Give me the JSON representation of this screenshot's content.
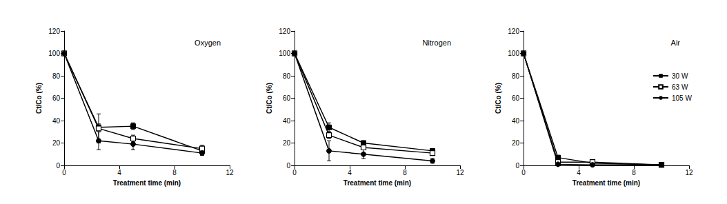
{
  "chart_data": [
    {
      "type": "line",
      "title": "Oxygen",
      "x_label": "Treatment time (min)",
      "y_label": "Ct/Co (%)",
      "x": [
        0,
        2.5,
        5,
        10
      ],
      "xlim": [
        0,
        12
      ],
      "xticks": [
        0,
        4,
        8,
        12
      ],
      "ylim": [
        0,
        120
      ],
      "yticks": [
        0,
        20,
        40,
        60,
        80,
        100,
        120
      ],
      "grid": false,
      "series": [
        {
          "name": "30 W",
          "color": "#000000",
          "marker": "square",
          "values": [
            100,
            34,
            35,
            13
          ],
          "errors": [
            0,
            3,
            3,
            2
          ]
        },
        {
          "name": "63 W",
          "color": "#000000",
          "marker": "open_square",
          "values": [
            100,
            33,
            24,
            15
          ],
          "errors": [
            0,
            13,
            3,
            3
          ]
        },
        {
          "name": "105 W",
          "color": "#000000",
          "marker": "circle",
          "values": [
            100,
            22,
            19,
            11
          ],
          "errors": [
            0,
            8,
            5,
            2
          ]
        }
      ]
    },
    {
      "type": "line",
      "title": "Nitrogen",
      "x_label": "Treatment time (min)",
      "y_label": "Ct/Co (%)",
      "x": [
        0,
        2.5,
        5,
        10
      ],
      "xlim": [
        0,
        12
      ],
      "xticks": [
        0,
        4,
        8,
        12
      ],
      "ylim": [
        0,
        120
      ],
      "yticks": [
        0,
        20,
        40,
        60,
        80,
        100,
        120
      ],
      "grid": false,
      "series": [
        {
          "name": "30 W",
          "color": "#000000",
          "marker": "square",
          "values": [
            100,
            34,
            20,
            13
          ],
          "errors": [
            0,
            4,
            2,
            2
          ]
        },
        {
          "name": "63 W",
          "color": "#000000",
          "marker": "open_square",
          "values": [
            100,
            27,
            16,
            11
          ],
          "errors": [
            0,
            3,
            2,
            2
          ]
        },
        {
          "name": "105 W",
          "color": "#000000",
          "marker": "circle",
          "values": [
            100,
            13,
            10,
            4
          ],
          "errors": [
            0,
            9,
            4,
            2
          ]
        }
      ]
    },
    {
      "type": "line",
      "title": "Air",
      "x_label": "Treatment time (min)",
      "y_label": "Ct/Co (%)",
      "x": [
        0,
        2.5,
        5,
        10
      ],
      "xlim": [
        0,
        12
      ],
      "xticks": [
        0,
        4,
        8,
        12
      ],
      "ylim": [
        0,
        120
      ],
      "yticks": [
        0,
        20,
        40,
        60,
        80,
        100,
        120
      ],
      "grid": false,
      "legend": "right",
      "series": [
        {
          "name": "30 W",
          "color": "#000000",
          "marker": "square",
          "values": [
            100,
            7,
            2,
            0.5
          ],
          "errors": [
            0,
            1,
            1,
            1
          ]
        },
        {
          "name": "63 W",
          "color": "#000000",
          "marker": "open_square",
          "values": [
            100,
            3,
            3,
            0.5
          ],
          "errors": [
            0,
            1,
            2,
            1
          ]
        },
        {
          "name": "105 W",
          "color": "#000000",
          "marker": "circle",
          "values": [
            100,
            1,
            0.5,
            0.5
          ],
          "errors": [
            0,
            0,
            0,
            0
          ]
        }
      ]
    }
  ]
}
